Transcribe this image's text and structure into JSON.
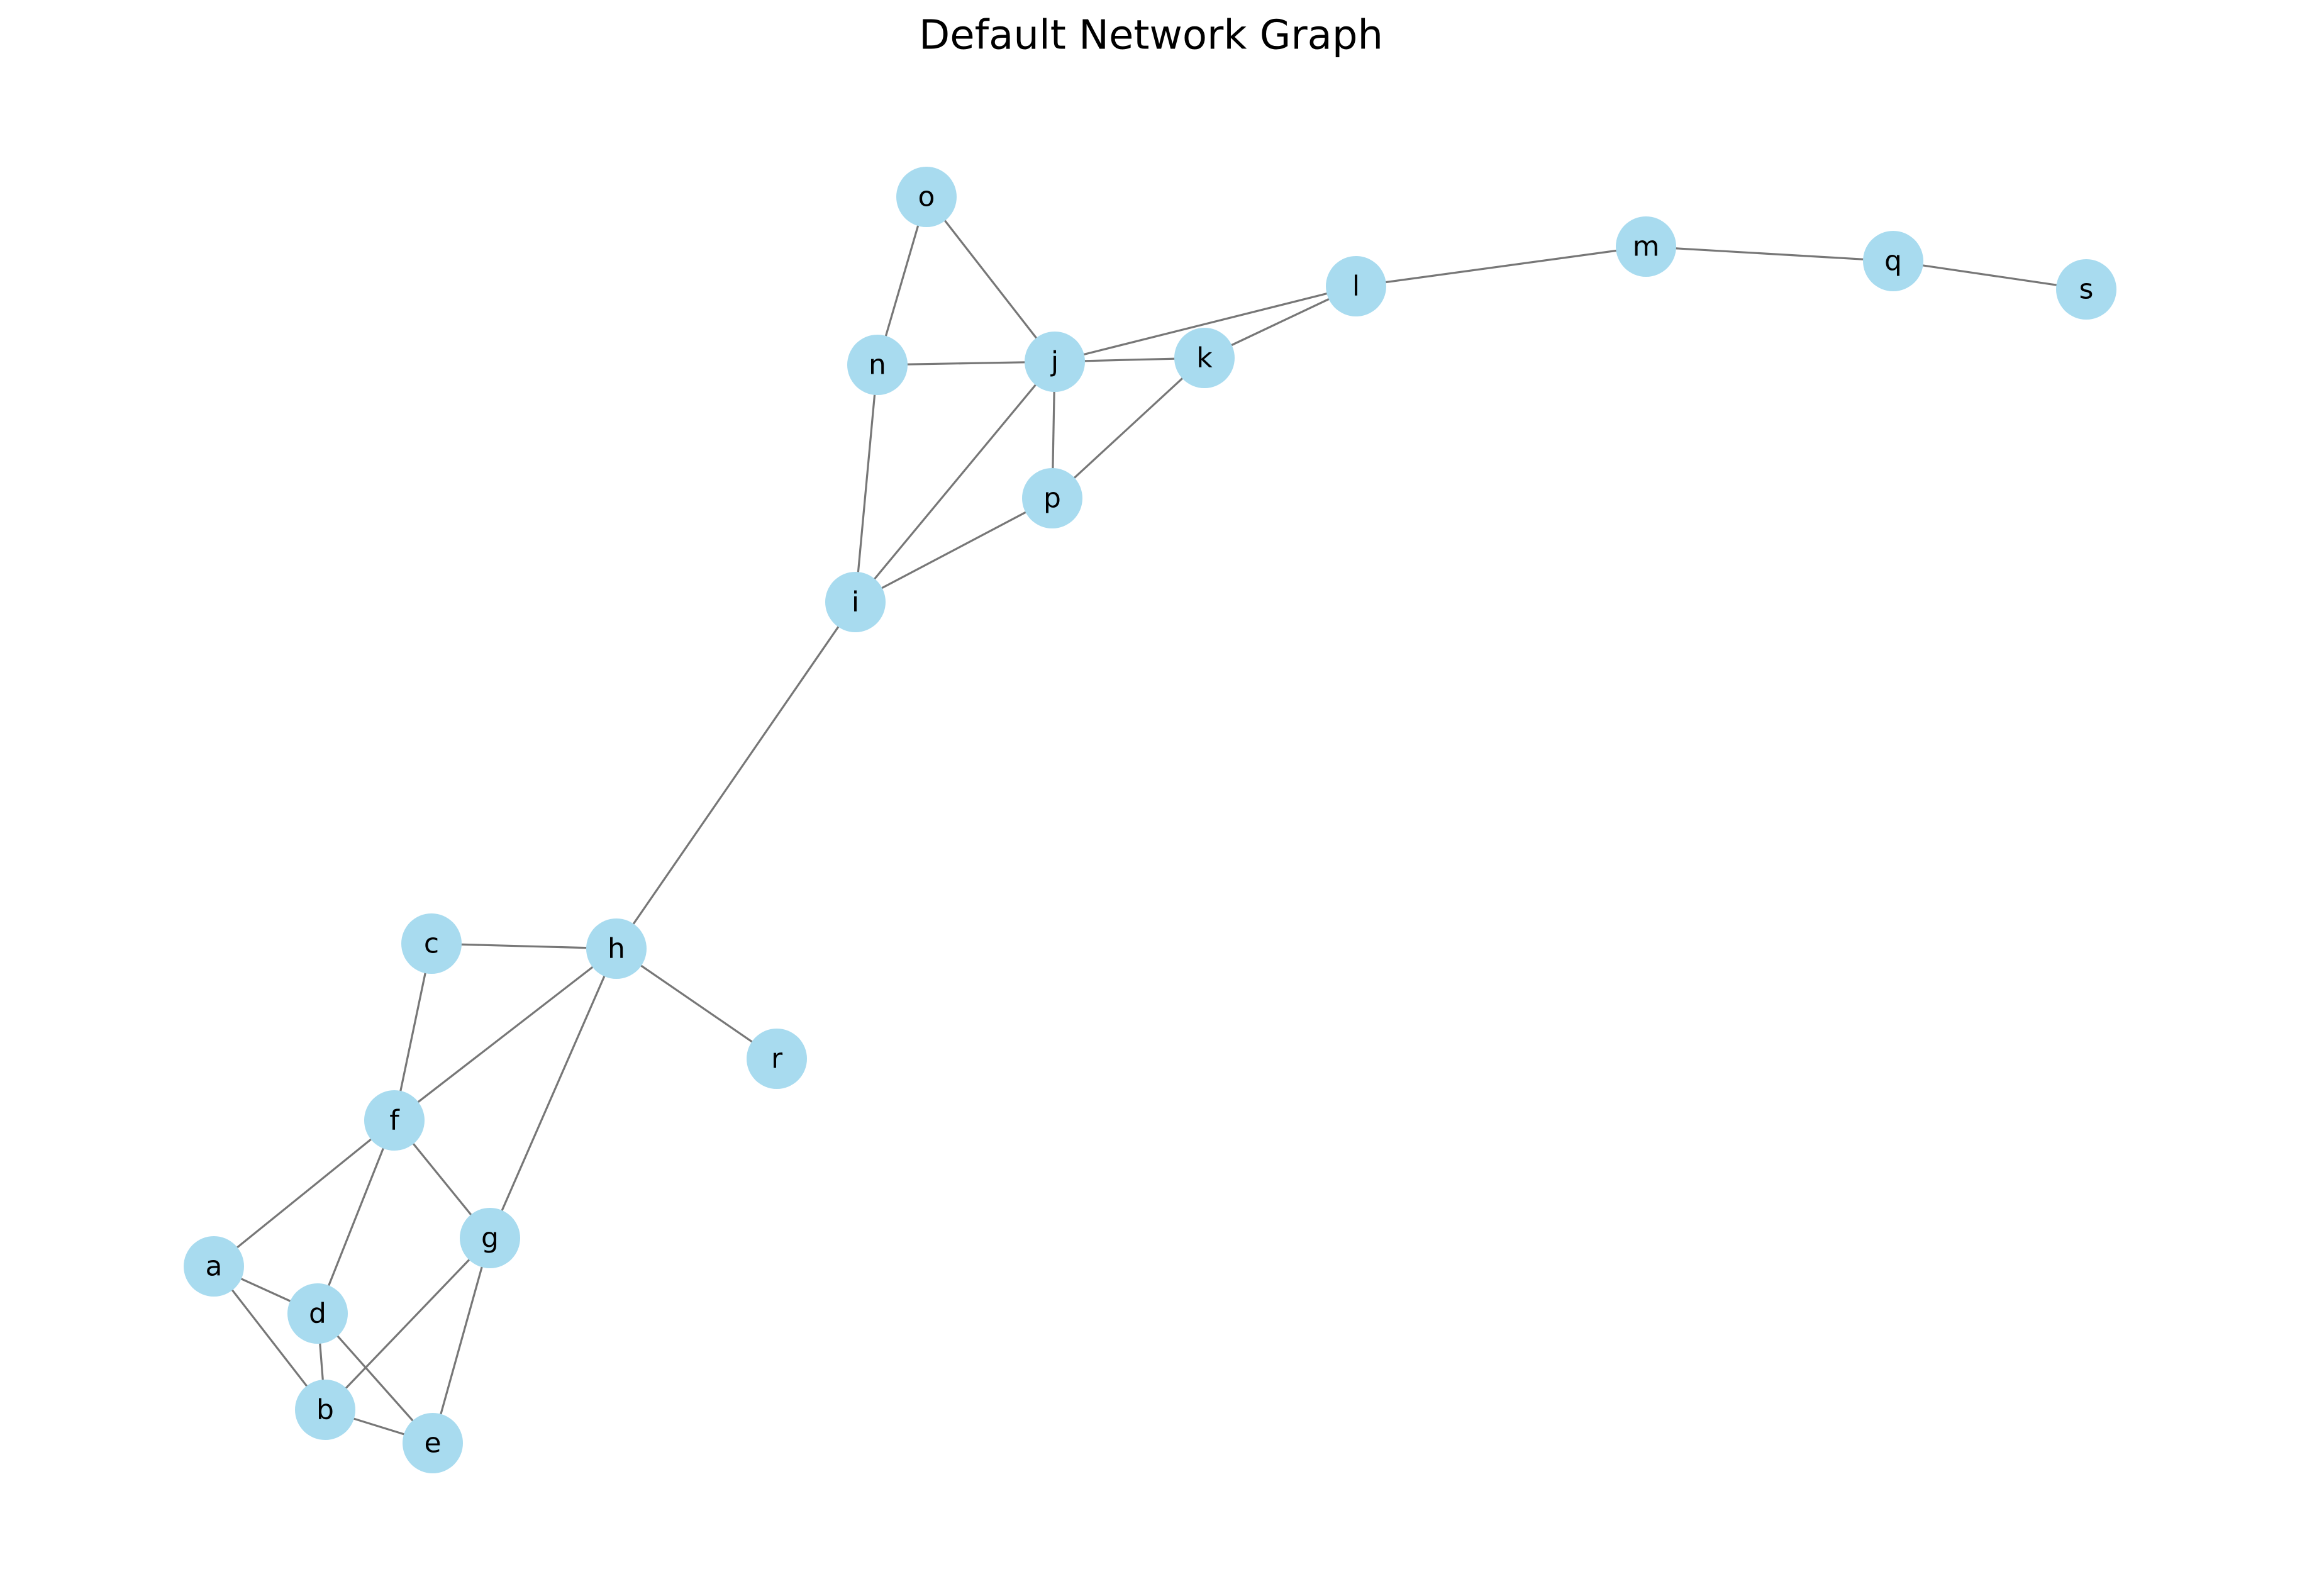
{
  "title": "Default Network Graph",
  "colors": {
    "node_fill": "#a8dbef",
    "edge": "#777777",
    "label": "#000000",
    "background": "#ffffff"
  },
  "nodes": [
    "a",
    "b",
    "c",
    "d",
    "e",
    "f",
    "g",
    "h",
    "i",
    "j",
    "k",
    "l",
    "m",
    "n",
    "o",
    "p",
    "q",
    "r",
    "s"
  ],
  "edges": [
    [
      "o",
      "n"
    ],
    [
      "o",
      "j"
    ],
    [
      "n",
      "j"
    ],
    [
      "n",
      "i"
    ],
    [
      "j",
      "k"
    ],
    [
      "j",
      "l"
    ],
    [
      "j",
      "p"
    ],
    [
      "j",
      "i"
    ],
    [
      "k",
      "l"
    ],
    [
      "k",
      "p"
    ],
    [
      "p",
      "i"
    ],
    [
      "l",
      "m"
    ],
    [
      "m",
      "q"
    ],
    [
      "q",
      "s"
    ],
    [
      "i",
      "h"
    ],
    [
      "c",
      "h"
    ],
    [
      "c",
      "f"
    ],
    [
      "h",
      "f"
    ],
    [
      "h",
      "g"
    ],
    [
      "h",
      "r"
    ],
    [
      "f",
      "a"
    ],
    [
      "f",
      "d"
    ],
    [
      "f",
      "g"
    ],
    [
      "a",
      "d"
    ],
    [
      "a",
      "b"
    ],
    [
      "d",
      "b"
    ],
    [
      "d",
      "e"
    ],
    [
      "g",
      "b"
    ],
    [
      "g",
      "e"
    ],
    [
      "b",
      "e"
    ]
  ]
}
